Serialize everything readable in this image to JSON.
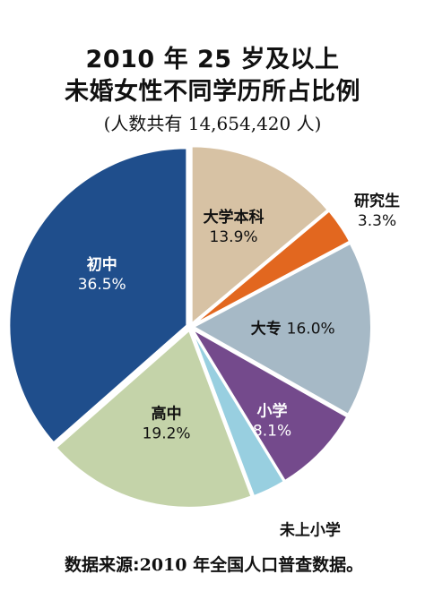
{
  "chart_data": {
    "type": "pie",
    "title_line1": "2010 年 25 岁及以上",
    "title_line2": "未婚女性不同学历所占比例",
    "subtitle": "(人数共有 14,654,420 人)",
    "slices": [
      {
        "name": "大学本科",
        "value": 13.9,
        "display": "13.9%",
        "color": "#d7c2a4",
        "label_color": "#111111"
      },
      {
        "name": "研究生",
        "value": 3.3,
        "display": "3.3%",
        "color": "#e2671f",
        "label_color": "#111111"
      },
      {
        "name": "大专",
        "value": 16.0,
        "display": "16.0%",
        "color": "#a6b9c6",
        "label_color": "#111111"
      },
      {
        "name": "小学",
        "value": 8.1,
        "display": "8.1%",
        "color": "#744a8c",
        "label_color": "#ffffff"
      },
      {
        "name": "未上小学",
        "value": 3.0,
        "display": "3.0%",
        "color": "#98cfe0",
        "label_color": "#111111"
      },
      {
        "name": "高中",
        "value": 19.2,
        "display": "19.2%",
        "color": "#c4d3a9",
        "label_color": "#111111"
      },
      {
        "name": "初中",
        "value": 36.5,
        "display": "36.5%",
        "color": "#1f4e8c",
        "label_color": "#ffffff"
      }
    ]
  },
  "source": {
    "label": "数据来源:",
    "value": "2010 年全国人口普查数据。"
  }
}
